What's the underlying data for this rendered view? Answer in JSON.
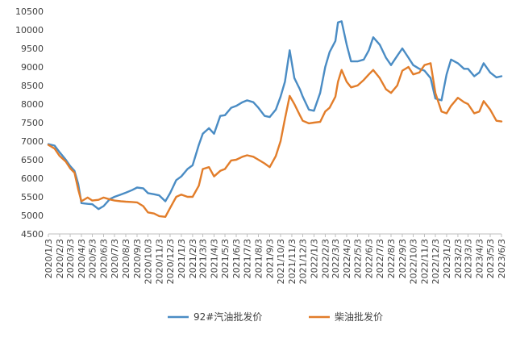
{
  "chart_data": {
    "type": "line",
    "title": "",
    "xlabel": "",
    "ylabel": "",
    "ylim": [
      4500,
      10500
    ],
    "yticks": [
      4500,
      5000,
      5500,
      6000,
      6500,
      7000,
      7500,
      8000,
      8500,
      9000,
      9500,
      10000,
      10500
    ],
    "xlim": [
      "2020/1/3",
      "2023/6/3"
    ],
    "x_tick_labels": [
      "2020/1/3",
      "2020/2/3",
      "2020/3/3",
      "2020/4/3",
      "2020/5/3",
      "2020/6/3",
      "2020/7/3",
      "2020/8/3",
      "2020/9/3",
      "2020/10/3",
      "2020/11/3",
      "2020/12/3",
      "2021/1/3",
      "2021/2/3",
      "2021/3/3",
      "2021/4/3",
      "2021/5/3",
      "2021/6/3",
      "2021/7/3",
      "2021/8/3",
      "2021/9/3",
      "2021/10/3",
      "2021/11/3",
      "2021/12/3",
      "2022/1/3",
      "2022/2/3",
      "2022/3/3",
      "2022/4/3",
      "2022/5/3",
      "2022/6/3",
      "2022/7/3",
      "2022/8/3",
      "2022/9/3",
      "2022/10/3",
      "2022/11/3",
      "2022/12/3",
      "2023/1/3",
      "2023/2/3",
      "2023/3/3",
      "2023/4/3",
      "2023/5/3",
      "2023/6/3"
    ],
    "grid": false,
    "legend_position": "bottom",
    "series": [
      {
        "name": "92#汽油批发价",
        "color": "#4a8cc4",
        "points": [
          [
            "2020/1/3",
            6920
          ],
          [
            "2020/1/20",
            6880
          ],
          [
            "2020/2/3",
            6700
          ],
          [
            "2020/2/20",
            6500
          ],
          [
            "2020/3/3",
            6330
          ],
          [
            "2020/3/15",
            6200
          ],
          [
            "2020/3/25",
            5850
          ],
          [
            "2020/4/3",
            5330
          ],
          [
            "2020/4/20",
            5310
          ],
          [
            "2020/5/3",
            5300
          ],
          [
            "2020/5/20",
            5170
          ],
          [
            "2020/6/3",
            5250
          ],
          [
            "2020/6/20",
            5440
          ],
          [
            "2020/7/3",
            5500
          ],
          [
            "2020/7/20",
            5560
          ],
          [
            "2020/8/3",
            5610
          ],
          [
            "2020/8/20",
            5680
          ],
          [
            "2020/9/3",
            5750
          ],
          [
            "2020/9/20",
            5730
          ],
          [
            "2020/10/3",
            5600
          ],
          [
            "2020/10/20",
            5570
          ],
          [
            "2020/11/3",
            5540
          ],
          [
            "2020/11/20",
            5380
          ],
          [
            "2020/12/3",
            5600
          ],
          [
            "2020/12/20",
            5950
          ],
          [
            "2021/1/3",
            6050
          ],
          [
            "2021/1/20",
            6250
          ],
          [
            "2021/2/3",
            6350
          ],
          [
            "2021/2/20",
            6900
          ],
          [
            "2021/3/3",
            7200
          ],
          [
            "2021/3/20",
            7350
          ],
          [
            "2021/4/3",
            7200
          ],
          [
            "2021/4/20",
            7680
          ],
          [
            "2021/5/3",
            7700
          ],
          [
            "2021/5/20",
            7900
          ],
          [
            "2021/6/3",
            7950
          ],
          [
            "2021/6/20",
            8050
          ],
          [
            "2021/7/3",
            8100
          ],
          [
            "2021/7/20",
            8050
          ],
          [
            "2021/8/3",
            7900
          ],
          [
            "2021/8/20",
            7680
          ],
          [
            "2021/9/3",
            7650
          ],
          [
            "2021/9/20",
            7850
          ],
          [
            "2021/10/3",
            8200
          ],
          [
            "2021/10/15",
            8600
          ],
          [
            "2021/10/28",
            9450
          ],
          [
            "2021/11/10",
            8700
          ],
          [
            "2021/11/25",
            8400
          ],
          [
            "2021/12/3",
            8200
          ],
          [
            "2021/12/20",
            7850
          ],
          [
            "2022/1/3",
            7820
          ],
          [
            "2022/1/20",
            8300
          ],
          [
            "2022/2/3",
            9000
          ],
          [
            "2022/2/15",
            9400
          ],
          [
            "2022/3/3",
            9700
          ],
          [
            "2022/3/10",
            10200
          ],
          [
            "2022/3/20",
            10230
          ],
          [
            "2022/4/3",
            9600
          ],
          [
            "2022/4/15",
            9150
          ],
          [
            "2022/5/3",
            9150
          ],
          [
            "2022/5/20",
            9200
          ],
          [
            "2022/6/3",
            9450
          ],
          [
            "2022/6/15",
            9800
          ],
          [
            "2022/7/3",
            9600
          ],
          [
            "2022/7/20",
            9250
          ],
          [
            "2022/8/3",
            9050
          ],
          [
            "2022/8/20",
            9300
          ],
          [
            "2022/9/3",
            9500
          ],
          [
            "2022/9/20",
            9250
          ],
          [
            "2022/10/3",
            9050
          ],
          [
            "2022/10/20",
            8950
          ],
          [
            "2022/11/3",
            8900
          ],
          [
            "2022/11/20",
            8700
          ],
          [
            "2022/12/3",
            8150
          ],
          [
            "2022/12/20",
            8100
          ],
          [
            "2023/1/3",
            8800
          ],
          [
            "2023/1/15",
            9200
          ],
          [
            "2023/2/3",
            9100
          ],
          [
            "2023/2/20",
            8950
          ],
          [
            "2023/3/3",
            8950
          ],
          [
            "2023/3/20",
            8750
          ],
          [
            "2023/4/3",
            8850
          ],
          [
            "2023/4/15",
            9100
          ],
          [
            "2023/5/3",
            8850
          ],
          [
            "2023/5/20",
            8720
          ],
          [
            "2023/6/3",
            8750
          ]
        ]
      },
      {
        "name": "柴油批发价",
        "color": "#e27d2a",
        "points": [
          [
            "2020/1/3",
            6900
          ],
          [
            "2020/1/20",
            6800
          ],
          [
            "2020/2/3",
            6600
          ],
          [
            "2020/2/20",
            6450
          ],
          [
            "2020/3/3",
            6270
          ],
          [
            "2020/3/15",
            6150
          ],
          [
            "2020/3/25",
            5700
          ],
          [
            "2020/4/3",
            5380
          ],
          [
            "2020/4/20",
            5480
          ],
          [
            "2020/5/3",
            5400
          ],
          [
            "2020/5/20",
            5420
          ],
          [
            "2020/6/3",
            5480
          ],
          [
            "2020/6/20",
            5430
          ],
          [
            "2020/7/3",
            5400
          ],
          [
            "2020/7/20",
            5380
          ],
          [
            "2020/8/3",
            5370
          ],
          [
            "2020/8/20",
            5360
          ],
          [
            "2020/9/3",
            5350
          ],
          [
            "2020/9/20",
            5250
          ],
          [
            "2020/10/3",
            5080
          ],
          [
            "2020/10/20",
            5050
          ],
          [
            "2020/11/3",
            4980
          ],
          [
            "2020/11/20",
            4960
          ],
          [
            "2020/12/3",
            5200
          ],
          [
            "2020/12/20",
            5500
          ],
          [
            "2021/1/3",
            5560
          ],
          [
            "2021/1/20",
            5500
          ],
          [
            "2021/2/3",
            5500
          ],
          [
            "2021/2/20",
            5800
          ],
          [
            "2021/3/3",
            6250
          ],
          [
            "2021/3/20",
            6300
          ],
          [
            "2021/4/3",
            6050
          ],
          [
            "2021/4/20",
            6200
          ],
          [
            "2021/5/3",
            6250
          ],
          [
            "2021/5/20",
            6480
          ],
          [
            "2021/6/3",
            6500
          ],
          [
            "2021/6/20",
            6580
          ],
          [
            "2021/7/3",
            6620
          ],
          [
            "2021/7/20",
            6580
          ],
          [
            "2021/8/3",
            6500
          ],
          [
            "2021/8/20",
            6400
          ],
          [
            "2021/9/3",
            6300
          ],
          [
            "2021/9/20",
            6600
          ],
          [
            "2021/10/3",
            7000
          ],
          [
            "2021/10/15",
            7600
          ],
          [
            "2021/10/28",
            8220
          ],
          [
            "2021/11/10",
            8000
          ],
          [
            "2021/11/25",
            7700
          ],
          [
            "2021/12/3",
            7550
          ],
          [
            "2021/12/20",
            7480
          ],
          [
            "2022/1/3",
            7500
          ],
          [
            "2022/1/20",
            7520
          ],
          [
            "2022/2/3",
            7800
          ],
          [
            "2022/2/15",
            7900
          ],
          [
            "2022/3/3",
            8200
          ],
          [
            "2022/3/10",
            8600
          ],
          [
            "2022/3/20",
            8920
          ],
          [
            "2022/4/3",
            8600
          ],
          [
            "2022/4/15",
            8450
          ],
          [
            "2022/5/3",
            8500
          ],
          [
            "2022/5/20",
            8650
          ],
          [
            "2022/6/3",
            8800
          ],
          [
            "2022/6/15",
            8920
          ],
          [
            "2022/7/3",
            8700
          ],
          [
            "2022/7/20",
            8400
          ],
          [
            "2022/8/3",
            8300
          ],
          [
            "2022/8/20",
            8500
          ],
          [
            "2022/9/3",
            8900
          ],
          [
            "2022/9/20",
            9000
          ],
          [
            "2022/10/3",
            8800
          ],
          [
            "2022/10/20",
            8850
          ],
          [
            "2022/11/3",
            9050
          ],
          [
            "2022/11/20",
            9100
          ],
          [
            "2022/12/3",
            8300
          ],
          [
            "2022/12/20",
            7800
          ],
          [
            "2023/1/3",
            7750
          ],
          [
            "2023/1/15",
            7950
          ],
          [
            "2023/2/3",
            8170
          ],
          [
            "2023/2/20",
            8050
          ],
          [
            "2023/3/3",
            8000
          ],
          [
            "2023/3/20",
            7750
          ],
          [
            "2023/4/3",
            7800
          ],
          [
            "2023/4/15",
            8080
          ],
          [
            "2023/5/3",
            7850
          ],
          [
            "2023/5/20",
            7550
          ],
          [
            "2023/6/3",
            7530
          ]
        ]
      }
    ]
  }
}
